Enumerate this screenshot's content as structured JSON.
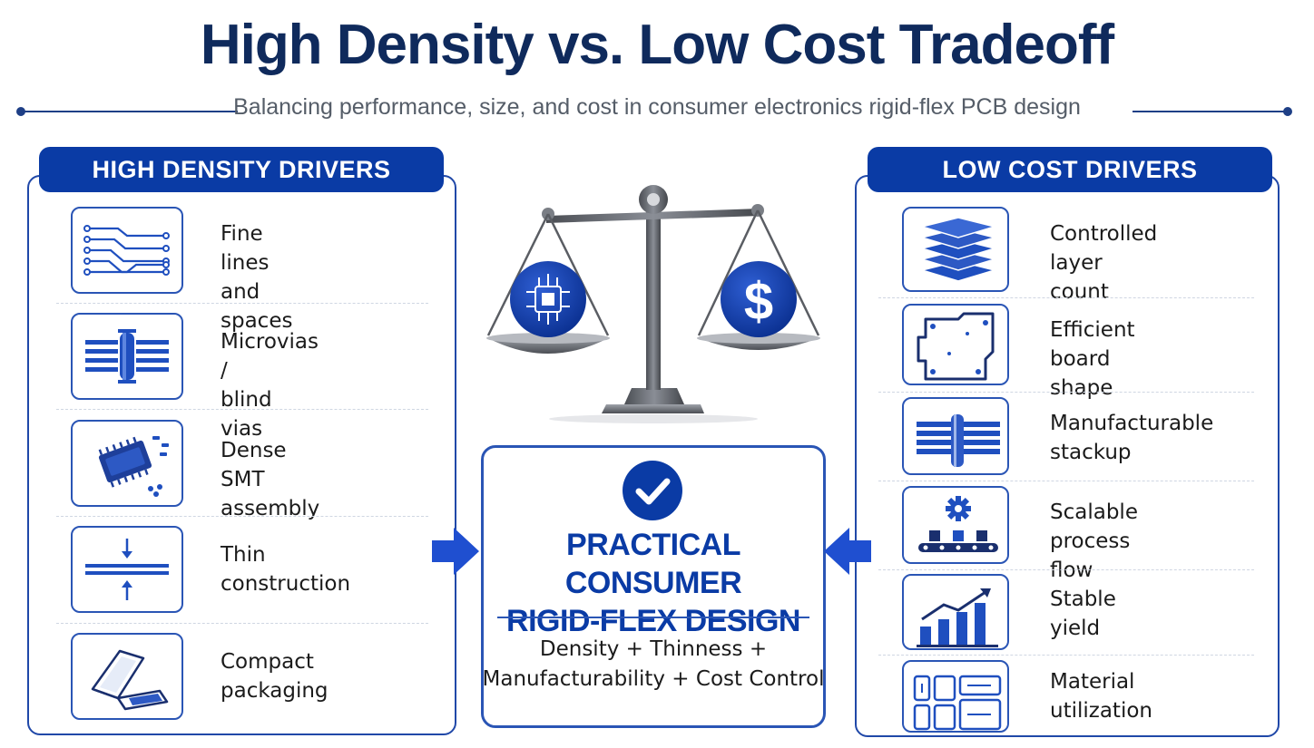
{
  "header": {
    "title": "High Density vs. Low Cost Tradeoff",
    "subtitle": "Balancing performance, size, and cost in consumer electronics rigid-flex PCB design"
  },
  "colors": {
    "primary": "#0a3ba5",
    "title": "#0f2a5c",
    "accent_border": "#2a55b5",
    "subtitle_text": "#555d68"
  },
  "left_panel": {
    "heading": "HIGH DENSITY DRIVERS",
    "items": [
      {
        "line1": "Fine lines",
        "line2": "and spaces",
        "icon": "fine-lines-icon"
      },
      {
        "line1": "Microvias /",
        "line2": "blind vias",
        "icon": "microvia-icon"
      },
      {
        "line1": "Dense SMT",
        "line2": "assembly",
        "icon": "chip-icon"
      },
      {
        "line1": "Thin",
        "line2": "construction",
        "icon": "thin-layers-icon"
      },
      {
        "line1": "Compact",
        "line2": "packaging",
        "icon": "foldable-device-icon"
      }
    ]
  },
  "right_panel": {
    "heading": "LOW COST DRIVERS",
    "items": [
      {
        "line1": "Controlled",
        "line2": "layer count",
        "icon": "layer-stack-icon"
      },
      {
        "line1": "Efficient",
        "line2": "board shape",
        "icon": "board-outline-icon"
      },
      {
        "line1": "Manufacturable",
        "line2": "stackup",
        "icon": "stackup-icon"
      },
      {
        "line1": "Scalable",
        "line2": "process flow",
        "icon": "conveyor-gear-icon"
      },
      {
        "line1": "Stable",
        "line2": "yield",
        "icon": "bar-chart-icon"
      },
      {
        "line1": "Material",
        "line2": "utilization",
        "icon": "panel-utilization-icon"
      }
    ]
  },
  "scale": {
    "left_icon": "processor-icon",
    "right_symbol": "$"
  },
  "center": {
    "title_line1": "PRACTICAL CONSUMER",
    "title_line2": "RIGID-FLEX DESIGN",
    "text_line1": "Density + Thinness +",
    "text_line2": "Manufacturability + Cost Control"
  }
}
